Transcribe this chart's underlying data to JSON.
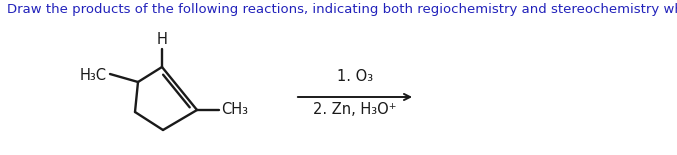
{
  "title_text": "Draw the products of the following reactions, indicating both regiochemistry and stereochemistry when appropriate.",
  "title_color": "#2222bb",
  "title_fontsize": 9.5,
  "bg_color": "#ffffff",
  "reagent_line1": "1. O₃",
  "reagent_line2": "2. Zn, H₃O⁺",
  "h3c_label": "H₃C",
  "h_label": "H",
  "ch3_label": "CH₃",
  "struct_color": "#1a1a1a",
  "arrow_color": "#1a1a1a",
  "text_color": "#1a1a1a",
  "fig_w": 6.77,
  "fig_h": 1.55,
  "dpi": 100
}
